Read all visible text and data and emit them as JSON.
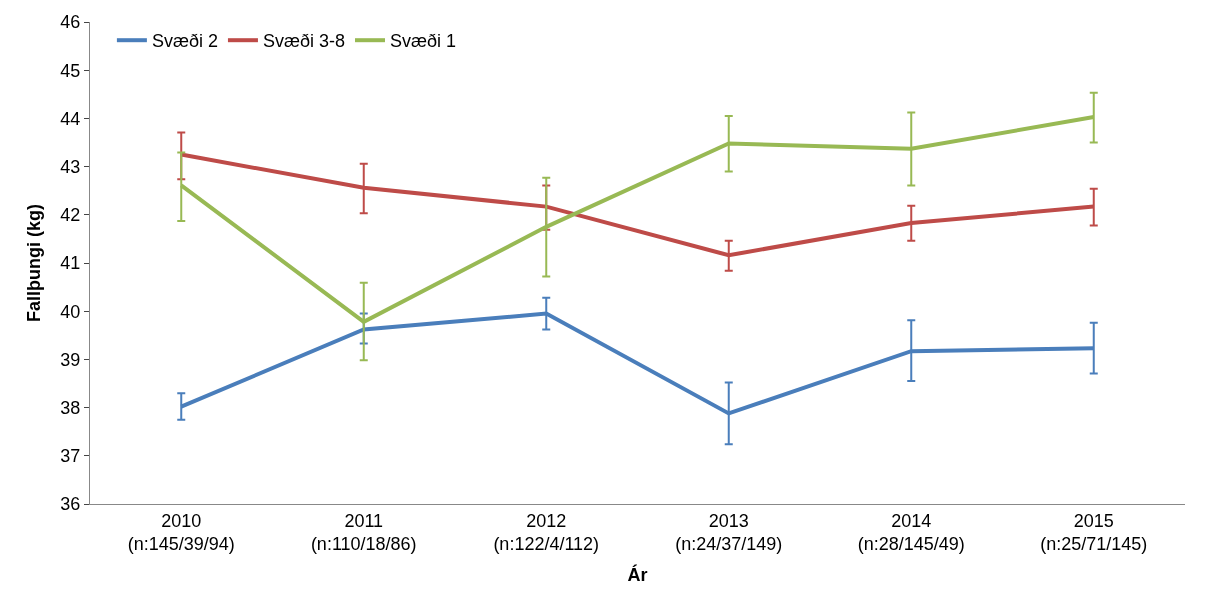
{
  "chart_data": {
    "type": "line",
    "xlabel": "Ár",
    "ylabel": "Fallþungi (kg)",
    "categories": [
      "2010\n(n:145/39/94)",
      "2011\n(n:110/18/86)",
      "2012\n(n:122/4/112)",
      "2013\n(n:24/37/149)",
      "2014\n(n:28/145/49)",
      "2015\n(n:25/71/145)"
    ],
    "series": [
      {
        "name": "Svæði 2",
        "color": "#4a7ebb",
        "values": [
          38.02,
          39.62,
          39.95,
          37.88,
          39.17,
          39.23
        ],
        "errors": [
          [
            37.75,
            38.3
          ],
          [
            39.33,
            39.95
          ],
          [
            39.62,
            40.28
          ],
          [
            37.24,
            38.52
          ],
          [
            38.55,
            39.81
          ],
          [
            38.71,
            39.76
          ]
        ]
      },
      {
        "name": "Svæði 3-8",
        "color": "#be4b48",
        "values": [
          43.25,
          42.56,
          42.17,
          41.16,
          41.83,
          42.17
        ],
        "errors": [
          [
            42.74,
            43.71
          ],
          [
            42.03,
            43.06
          ],
          [
            41.69,
            42.61
          ],
          [
            40.84,
            41.46
          ],
          [
            41.46,
            42.19
          ],
          [
            41.78,
            42.54
          ]
        ]
      },
      {
        "name": "Svæði 1",
        "color": "#98b954",
        "values": [
          42.61,
          39.78,
          41.75,
          43.48,
          43.37,
          44.03
        ],
        "errors": [
          [
            41.87,
            43.29
          ],
          [
            38.98,
            40.59
          ],
          [
            40.72,
            42.77
          ],
          [
            42.9,
            44.05
          ],
          [
            42.61,
            44.12
          ],
          [
            43.5,
            44.53
          ]
        ]
      }
    ],
    "ylim": [
      36,
      46
    ],
    "yticks": [
      36,
      37,
      38,
      39,
      40,
      41,
      42,
      43,
      44,
      45,
      46
    ],
    "grid": false,
    "legend": "top left",
    "marker": "none",
    "line_style": "solid"
  }
}
